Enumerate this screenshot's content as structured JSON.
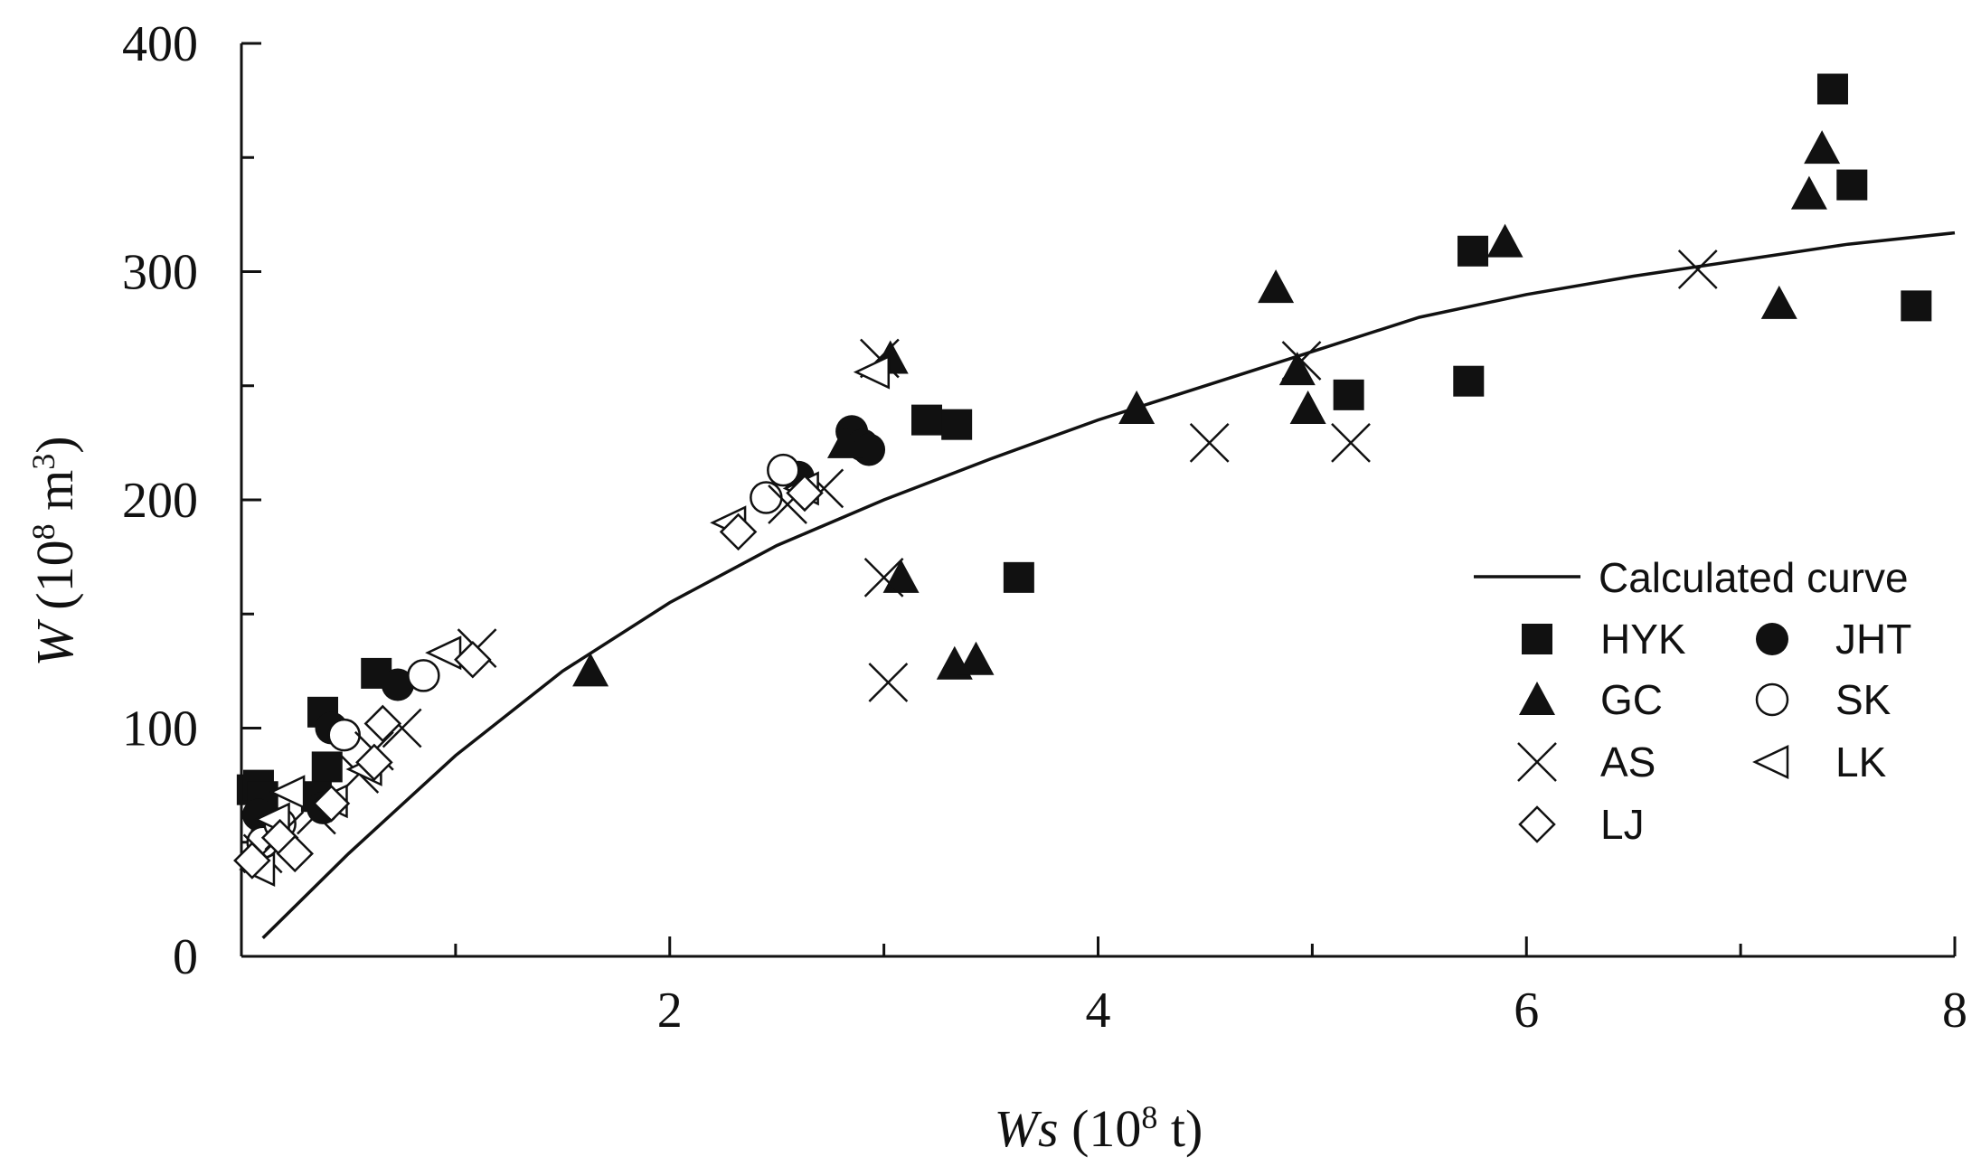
{
  "chart_data": {
    "type": "scatter",
    "xlabel": {
      "var": "Ws",
      "unit_pre": " (10",
      "sup": "8",
      "unit_post": " t)"
    },
    "ylabel": {
      "var": "W",
      "unit_pre": " (10",
      "sup": "8",
      "unit_mid": " m",
      "sup2": "3",
      "unit_post": ")"
    },
    "xlim": [
      0,
      8
    ],
    "ylim": [
      0,
      400
    ],
    "x_ticks": [
      2,
      4,
      6,
      8
    ],
    "x_minor_ticks": [
      1,
      3,
      5,
      7
    ],
    "y_ticks": [
      0,
      100,
      200,
      300,
      400
    ],
    "y_minor_ticks": [
      50,
      150,
      250,
      350
    ],
    "x_tick_labels": [
      "2",
      "4",
      "6",
      "8"
    ],
    "y_tick_labels": [
      "0",
      "100",
      "200",
      "300",
      "400"
    ],
    "grid": false,
    "legend_position": "lower-right",
    "curve": {
      "name": "Calculated curve",
      "x": [
        0.1,
        0.5,
        1.0,
        1.5,
        2.0,
        2.5,
        3.0,
        3.5,
        4.0,
        4.5,
        5.0,
        5.5,
        6.0,
        6.5,
        7.0,
        7.5,
        8.0
      ],
      "y": [
        8,
        45,
        88,
        125,
        155,
        180,
        200,
        218,
        235,
        250,
        265,
        280,
        290,
        298,
        305,
        312,
        317
      ]
    },
    "series": [
      {
        "name": "HYK",
        "marker": "square",
        "points": [
          [
            0.05,
            73
          ],
          [
            0.08,
            75
          ],
          [
            0.1,
            70
          ],
          [
            0.38,
            107
          ],
          [
            0.4,
            83
          ],
          [
            0.35,
            70
          ],
          [
            0.63,
            124
          ],
          [
            3.2,
            235
          ],
          [
            3.34,
            233
          ],
          [
            3.63,
            166
          ],
          [
            5.17,
            246
          ],
          [
            5.73,
            252
          ],
          [
            5.75,
            309
          ],
          [
            7.43,
            380
          ],
          [
            7.52,
            338
          ],
          [
            7.82,
            285
          ]
        ]
      },
      {
        "name": "JHT",
        "marker": "circle-filled",
        "points": [
          [
            0.08,
            62
          ],
          [
            0.12,
            55
          ],
          [
            0.38,
            65
          ],
          [
            0.42,
            100
          ],
          [
            0.73,
            119
          ],
          [
            2.6,
            210
          ],
          [
            2.85,
            230
          ],
          [
            2.9,
            224
          ],
          [
            2.93,
            222
          ]
        ]
      },
      {
        "name": "GC",
        "marker": "triangle",
        "points": [
          [
            1.63,
            125
          ],
          [
            2.82,
            225
          ],
          [
            3.03,
            262
          ],
          [
            3.08,
            166
          ],
          [
            3.33,
            128
          ],
          [
            3.43,
            130
          ],
          [
            4.18,
            240
          ],
          [
            4.83,
            293
          ],
          [
            4.93,
            257
          ],
          [
            4.98,
            240
          ],
          [
            5.9,
            313
          ],
          [
            7.18,
            286
          ],
          [
            7.32,
            334
          ],
          [
            7.38,
            354
          ]
        ]
      },
      {
        "name": "SK",
        "marker": "circle-open",
        "points": [
          [
            0.1,
            50
          ],
          [
            0.18,
            58
          ],
          [
            0.48,
            97
          ],
          [
            0.85,
            123
          ],
          [
            2.45,
            201
          ],
          [
            2.53,
            213
          ]
        ]
      },
      {
        "name": "AS",
        "marker": "cross",
        "points": [
          [
            0.1,
            45
          ],
          [
            0.2,
            55
          ],
          [
            0.35,
            62
          ],
          [
            0.55,
            80
          ],
          [
            0.62,
            90
          ],
          [
            0.75,
            100
          ],
          [
            1.1,
            135
          ],
          [
            2.55,
            198
          ],
          [
            2.72,
            205
          ],
          [
            2.98,
            262
          ],
          [
            3.0,
            166
          ],
          [
            3.02,
            120
          ],
          [
            4.52,
            225
          ],
          [
            4.95,
            261
          ],
          [
            5.18,
            225
          ],
          [
            6.8,
            301
          ]
        ]
      },
      {
        "name": "LK",
        "marker": "triangle-left",
        "points": [
          [
            0.08,
            38
          ],
          [
            0.15,
            60
          ],
          [
            0.22,
            72
          ],
          [
            0.42,
            68
          ],
          [
            0.58,
            82
          ],
          [
            0.95,
            133
          ],
          [
            2.28,
            190
          ],
          [
            2.62,
            205
          ],
          [
            2.95,
            256
          ]
        ]
      },
      {
        "name": "LJ",
        "marker": "diamond",
        "points": [
          [
            0.05,
            42
          ],
          [
            0.18,
            52
          ],
          [
            0.25,
            45
          ],
          [
            0.42,
            67
          ],
          [
            0.62,
            85
          ],
          [
            0.66,
            102
          ],
          [
            1.08,
            130
          ],
          [
            2.32,
            186
          ],
          [
            2.63,
            203
          ]
        ]
      }
    ]
  }
}
